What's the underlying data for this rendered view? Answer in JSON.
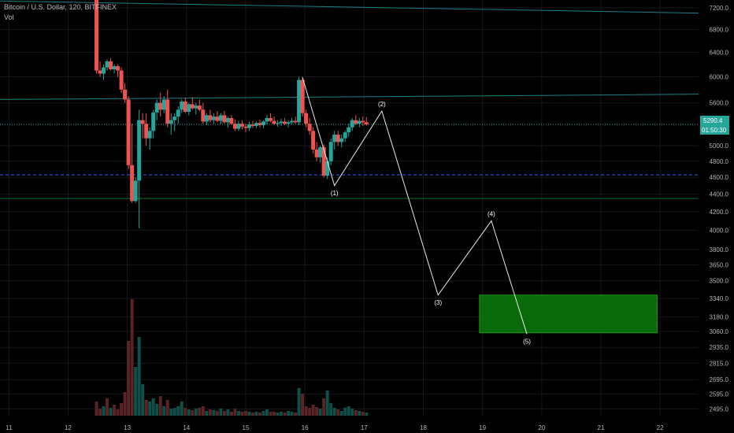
{
  "header": {
    "title": "Bitcoin / U.S. Dollar, 120, BITFINEX",
    "indicator": "Vol"
  },
  "price_tag": {
    "price": "5290.4",
    "countdown": "01:50:30",
    "color": "#26a69a"
  },
  "colors": {
    "up": "#26a69a",
    "down": "#ef5350",
    "wave": "#e8e8e8",
    "target_zone": "#0a7d0a",
    "hline": "#1e7f86",
    "dashed": "#2962ff"
  },
  "chart_data": {
    "type": "candlestick",
    "symbol": "Bitcoin / U.S. Dollar",
    "interval": "120",
    "exchange": "BITFINEX",
    "x_ticks": [
      "11",
      "12",
      "13",
      "14",
      "15",
      "16",
      "17",
      "18",
      "19",
      "20",
      "21",
      "22"
    ],
    "y_ticks": [
      "7200.0",
      "6800.0",
      "6400.0",
      "6000.0",
      "5600.0",
      "5290.4",
      "5000.0",
      "4800.0",
      "4600.0",
      "4400.0",
      "4200.0",
      "4000.0",
      "3800.0",
      "3650.0",
      "3500.0",
      "3340.0",
      "3180.0",
      "3060.0",
      "2935.0",
      "2815.0",
      "2695.0",
      "2595.0",
      "2495.0"
    ],
    "y_scale": "log",
    "ylim": [
      2450,
      7350
    ],
    "xlim": [
      10.85,
      22.65
    ],
    "last_price": 5290.4,
    "candles": [
      [
        12.48,
        7700,
        7700,
        6050,
        6100
      ],
      [
        12.54,
        6100,
        6250,
        6000,
        6050
      ],
      [
        12.6,
        6050,
        6200,
        5950,
        6150
      ],
      [
        12.66,
        6150,
        6280,
        6100,
        6250
      ],
      [
        12.72,
        6250,
        6300,
        6100,
        6120
      ],
      [
        12.78,
        6120,
        6200,
        6050,
        6170
      ],
      [
        12.84,
        6170,
        6200,
        6000,
        6100
      ],
      [
        12.9,
        6100,
        6150,
        5750,
        5800
      ],
      [
        12.96,
        5800,
        5900,
        5600,
        5650
      ],
      [
        13.02,
        5650,
        5700,
        4700,
        4750
      ],
      [
        13.08,
        4750,
        5300,
        4300,
        4320
      ],
      [
        13.14,
        4320,
        4600,
        4300,
        4560
      ],
      [
        13.2,
        4560,
        5500,
        4020,
        5350
      ],
      [
        13.26,
        5350,
        5450,
        5100,
        5300
      ],
      [
        13.32,
        5300,
        5450,
        5000,
        5100
      ],
      [
        13.38,
        5100,
        5250,
        4950,
        5200
      ],
      [
        13.44,
        5200,
        5500,
        5100,
        5460
      ],
      [
        13.5,
        5460,
        5650,
        5350,
        5600
      ],
      [
        13.56,
        5600,
        5750,
        5400,
        5500
      ],
      [
        13.62,
        5500,
        5700,
        5450,
        5650
      ],
      [
        13.68,
        5650,
        5800,
        5250,
        5300
      ],
      [
        13.74,
        5300,
        5450,
        5150,
        5350
      ],
      [
        13.8,
        5350,
        5450,
        5200,
        5400
      ],
      [
        13.86,
        5400,
        5550,
        5300,
        5500
      ],
      [
        13.92,
        5500,
        5650,
        5450,
        5620
      ],
      [
        13.98,
        5620,
        5680,
        5450,
        5470
      ],
      [
        14.04,
        5470,
        5600,
        5420,
        5580
      ],
      [
        14.1,
        5580,
        5680,
        5500,
        5520
      ],
      [
        14.16,
        5520,
        5600,
        5430,
        5560
      ],
      [
        14.22,
        5560,
        5650,
        5480,
        5500
      ],
      [
        14.28,
        5500,
        5600,
        5300,
        5330
      ],
      [
        14.34,
        5330,
        5450,
        5280,
        5420
      ],
      [
        14.4,
        5420,
        5500,
        5320,
        5350
      ],
      [
        14.46,
        5350,
        5450,
        5300,
        5400
      ],
      [
        14.52,
        5400,
        5480,
        5320,
        5340
      ],
      [
        14.58,
        5340,
        5450,
        5300,
        5420
      ],
      [
        14.64,
        5420,
        5480,
        5300,
        5320
      ],
      [
        14.7,
        5320,
        5400,
        5250,
        5380
      ],
      [
        14.76,
        5380,
        5420,
        5280,
        5300
      ],
      [
        14.82,
        5300,
        5360,
        5200,
        5230
      ],
      [
        14.88,
        5230,
        5340,
        5200,
        5300
      ],
      [
        14.94,
        5300,
        5350,
        5220,
        5260
      ],
      [
        15.0,
        5260,
        5300,
        5180,
        5240
      ],
      [
        15.06,
        5240,
        5330,
        5200,
        5290
      ],
      [
        15.12,
        5290,
        5340,
        5240,
        5270
      ],
      [
        15.18,
        5270,
        5330,
        5240,
        5310
      ],
      [
        15.24,
        5310,
        5360,
        5250,
        5280
      ],
      [
        15.3,
        5280,
        5350,
        5240,
        5330
      ],
      [
        15.36,
        5330,
        5420,
        5290,
        5380
      ],
      [
        15.42,
        5380,
        5450,
        5320,
        5340
      ],
      [
        15.48,
        5340,
        5400,
        5280,
        5300
      ],
      [
        15.54,
        5300,
        5350,
        5260,
        5310
      ],
      [
        15.6,
        5310,
        5370,
        5270,
        5330
      ],
      [
        15.66,
        5330,
        5380,
        5280,
        5300
      ],
      [
        15.72,
        5300,
        5350,
        5250,
        5320
      ],
      [
        15.78,
        5320,
        5380,
        5290,
        5340
      ],
      [
        15.84,
        5340,
        5400,
        5300,
        5320
      ],
      [
        15.9,
        5320,
        6000,
        5280,
        5950
      ],
      [
        15.96,
        5950,
        6000,
        5400,
        5450
      ],
      [
        16.02,
        5450,
        5500,
        5250,
        5300
      ],
      [
        16.08,
        5300,
        5380,
        5150,
        5200
      ],
      [
        16.14,
        5200,
        5250,
        4900,
        4950
      ],
      [
        16.2,
        4950,
        5050,
        4800,
        4850
      ],
      [
        16.26,
        4850,
        5000,
        4780,
        4980
      ],
      [
        16.32,
        4980,
        5020,
        4600,
        4620
      ],
      [
        16.38,
        4620,
        4850,
        4580,
        4800
      ],
      [
        16.44,
        4800,
        5100,
        4750,
        5050
      ],
      [
        16.5,
        5050,
        5200,
        4950,
        5150
      ],
      [
        16.56,
        5150,
        5200,
        5000,
        5050
      ],
      [
        16.62,
        5050,
        5150,
        4980,
        5100
      ],
      [
        16.68,
        5100,
        5200,
        5050,
        5180
      ],
      [
        16.74,
        5180,
        5300,
        5120,
        5250
      ],
      [
        16.8,
        5250,
        5380,
        5200,
        5350
      ],
      [
        16.86,
        5350,
        5420,
        5280,
        5300
      ],
      [
        16.92,
        5300,
        5380,
        5250,
        5340
      ],
      [
        16.98,
        5340,
        5400,
        5270,
        5320
      ],
      [
        17.04,
        5320,
        5390,
        5270,
        5290
      ]
    ],
    "volume": [
      [
        12.48,
        18,
        "down"
      ],
      [
        12.54,
        9,
        "down"
      ],
      [
        12.6,
        12,
        "up"
      ],
      [
        12.66,
        22,
        "down"
      ],
      [
        12.72,
        10,
        "up"
      ],
      [
        12.78,
        14,
        "down"
      ],
      [
        12.84,
        8,
        "down"
      ],
      [
        12.9,
        16,
        "down"
      ],
      [
        12.96,
        30,
        "down"
      ],
      [
        13.02,
        95,
        "down"
      ],
      [
        13.08,
        148,
        "down"
      ],
      [
        13.14,
        62,
        "up"
      ],
      [
        13.2,
        100,
        "up"
      ],
      [
        13.26,
        40,
        "up"
      ],
      [
        13.32,
        20,
        "down"
      ],
      [
        13.38,
        18,
        "up"
      ],
      [
        13.44,
        22,
        "up"
      ],
      [
        13.5,
        15,
        "up"
      ],
      [
        13.56,
        25,
        "down"
      ],
      [
        13.62,
        12,
        "up"
      ],
      [
        13.68,
        20,
        "down"
      ],
      [
        13.74,
        9,
        "up"
      ],
      [
        13.8,
        10,
        "up"
      ],
      [
        13.86,
        12,
        "up"
      ],
      [
        13.92,
        18,
        "up"
      ],
      [
        13.98,
        10,
        "down"
      ],
      [
        14.04,
        8,
        "up"
      ],
      [
        14.1,
        7,
        "down"
      ],
      [
        14.16,
        9,
        "up"
      ],
      [
        14.22,
        10,
        "down"
      ],
      [
        14.28,
        12,
        "down"
      ],
      [
        14.34,
        6,
        "up"
      ],
      [
        14.4,
        8,
        "down"
      ],
      [
        14.46,
        7,
        "up"
      ],
      [
        14.52,
        6,
        "down"
      ],
      [
        14.58,
        9,
        "up"
      ],
      [
        14.64,
        6,
        "down"
      ],
      [
        14.7,
        8,
        "up"
      ],
      [
        14.76,
        5,
        "down"
      ],
      [
        14.82,
        9,
        "down"
      ],
      [
        14.88,
        6,
        "up"
      ],
      [
        14.94,
        5,
        "down"
      ],
      [
        15.0,
        6,
        "down"
      ],
      [
        15.06,
        5,
        "up"
      ],
      [
        15.12,
        4,
        "down"
      ],
      [
        15.18,
        5,
        "up"
      ],
      [
        15.24,
        4,
        "down"
      ],
      [
        15.3,
        6,
        "up"
      ],
      [
        15.36,
        8,
        "up"
      ],
      [
        15.42,
        5,
        "down"
      ],
      [
        15.48,
        5,
        "down"
      ],
      [
        15.54,
        4,
        "up"
      ],
      [
        15.6,
        5,
        "up"
      ],
      [
        15.66,
        4,
        "down"
      ],
      [
        15.72,
        6,
        "up"
      ],
      [
        15.78,
        5,
        "up"
      ],
      [
        15.84,
        4,
        "down"
      ],
      [
        15.9,
        35,
        "up"
      ],
      [
        15.96,
        28,
        "down"
      ],
      [
        16.02,
        12,
        "down"
      ],
      [
        16.08,
        10,
        "down"
      ],
      [
        16.14,
        14,
        "down"
      ],
      [
        16.2,
        11,
        "down"
      ],
      [
        16.26,
        9,
        "up"
      ],
      [
        16.32,
        22,
        "down"
      ],
      [
        16.38,
        32,
        "up"
      ],
      [
        16.44,
        16,
        "up"
      ],
      [
        16.5,
        10,
        "up"
      ],
      [
        16.56,
        8,
        "down"
      ],
      [
        16.62,
        6,
        "up"
      ],
      [
        16.68,
        10,
        "up"
      ],
      [
        16.74,
        12,
        "up"
      ],
      [
        16.8,
        9,
        "up"
      ],
      [
        16.86,
        7,
        "down"
      ],
      [
        16.92,
        6,
        "up"
      ],
      [
        16.98,
        5,
        "down"
      ],
      [
        17.04,
        4,
        "up"
      ]
    ],
    "horizontal_lines": [
      {
        "price": 5290.4,
        "style": "dotted"
      },
      {
        "price": 4350,
        "style": "solid"
      },
      {
        "price": 4630,
        "style": "dashed"
      }
    ],
    "trend_lines": [
      {
        "from": [
          10.85,
          7330
        ],
        "to": [
          22.65,
          7100
        ]
      },
      {
        "from": [
          10.85,
          5650
        ],
        "to": [
          22.65,
          5730
        ]
      }
    ],
    "elliott_wave": [
      {
        "label": "",
        "x": 15.96,
        "price": 5990
      },
      {
        "label": "(1)",
        "x": 16.5,
        "price": 4500
      },
      {
        "label": "(2)",
        "x": 17.3,
        "price": 5480
      },
      {
        "label": "(3)",
        "x": 18.25,
        "price": 3370
      },
      {
        "label": "(4)",
        "x": 19.15,
        "price": 4100
      },
      {
        "label": "(5)",
        "x": 19.75,
        "price": 3040
      }
    ],
    "target_zone": {
      "x0": 18.95,
      "x1": 21.95,
      "price_top": 3370,
      "price_bottom": 3050
    }
  }
}
